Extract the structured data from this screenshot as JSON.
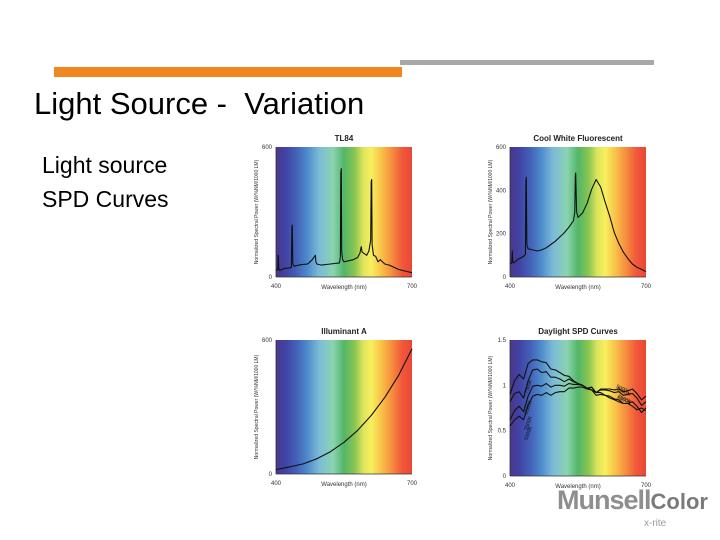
{
  "slide": {
    "title": "Light Source -  Variation",
    "subtitle_line1": "Light source",
    "subtitle_line2": "SPD Curves"
  },
  "logo": {
    "brand": "Munsell",
    "brand_suffix": "Color",
    "maker": "x-rite"
  },
  "colors": {
    "accent_orange": "#f0861e",
    "rule_gray": "#a8a8a8"
  },
  "chart_data": [
    {
      "type": "line",
      "title": "TL84",
      "xlabel": "Wavelength (nm)",
      "ylabel": "Normalized Spectral Power (W/%NM/1000 LM)",
      "xlim": [
        400,
        700
      ],
      "ylim": [
        0,
        600
      ],
      "yticks": [
        "600",
        "0"
      ],
      "xticks": [
        "400",
        "700"
      ],
      "series": [
        {
          "x": [
            400,
            404,
            405,
            406,
            408,
            420,
            430,
            434,
            435,
            436,
            437,
            440,
            450,
            460,
            470,
            480,
            485,
            487,
            488,
            490,
            500,
            520,
            540,
            542,
            543,
            544,
            545,
            547,
            550,
            560,
            570,
            580,
            585,
            588,
            590,
            600,
            605,
            609,
            610,
            611,
            612,
            615,
            620,
            625,
            630,
            640,
            650,
            660,
            670,
            680,
            690,
            700
          ],
          "y": [
            30,
            35,
            100,
            40,
            30,
            40,
            42,
            45,
            230,
            240,
            60,
            50,
            55,
            58,
            60,
            80,
            95,
            100,
            70,
            60,
            55,
            60,
            65,
            95,
            480,
            500,
            120,
            80,
            70,
            75,
            80,
            90,
            110,
            140,
            115,
            100,
            120,
            170,
            440,
            450,
            150,
            100,
            95,
            70,
            80,
            60,
            55,
            45,
            35,
            30,
            25,
            20
          ]
        }
      ]
    },
    {
      "type": "line",
      "title": "Cool White Fluorescent",
      "xlabel": "Wavelength (nm)",
      "ylabel": "Normalized Spectral Power (W/%NM/1000 LM)",
      "xlim": [
        400,
        700
      ],
      "ylim": [
        0,
        600
      ],
      "yticks": [
        "600",
        "400",
        "200",
        "0"
      ],
      "xticks": [
        "400",
        "700"
      ],
      "series": [
        {
          "x": [
            400,
            404,
            405,
            406,
            408,
            420,
            430,
            434,
            435,
            436,
            437,
            440,
            450,
            460,
            470,
            480,
            490,
            500,
            510,
            520,
            530,
            540,
            543,
            544,
            545,
            547,
            550,
            560,
            570,
            580,
            590,
            600,
            610,
            620,
            630,
            640,
            650,
            660,
            670,
            680,
            690,
            700
          ],
          "y": [
            60,
            65,
            120,
            70,
            65,
            85,
            95,
            105,
            440,
            460,
            150,
            130,
            125,
            120,
            125,
            135,
            150,
            165,
            185,
            205,
            230,
            260,
            300,
            460,
            480,
            300,
            275,
            295,
            340,
            405,
            450,
            415,
            345,
            280,
            205,
            155,
            115,
            85,
            60,
            45,
            35,
            25
          ]
        }
      ]
    },
    {
      "type": "line",
      "title": "Illuminant A",
      "xlabel": "Wavelength (nm)",
      "ylabel": "Normalized Spectral Power (W/%NM/1000 LM)",
      "xlim": [
        400,
        700
      ],
      "ylim": [
        0,
        600
      ],
      "yticks": [
        "600",
        "0"
      ],
      "xticks": [
        "400",
        "700"
      ],
      "series": [
        {
          "x": [
            400,
            430,
            460,
            490,
            520,
            550,
            580,
            610,
            640,
            670,
            700
          ],
          "y": [
            20,
            32,
            45,
            68,
            100,
            142,
            195,
            262,
            343,
            440,
            560
          ]
        }
      ]
    },
    {
      "type": "line",
      "title": "Daylight SPD Curves",
      "xlabel": "Wavelength (nm)",
      "ylabel": "Normalized Spectral Power (W/%NM/1000 LM)",
      "xlim": [
        400,
        700
      ],
      "ylim": [
        0,
        1.5
      ],
      "yticks": [
        "1.5",
        "1",
        "0.5",
        "0"
      ],
      "xticks": [
        "400",
        "700"
      ],
      "series": [
        {
          "name": "7500K",
          "x": [
            400,
            410,
            420,
            430,
            440,
            450,
            460,
            470,
            480,
            490,
            500,
            510,
            520,
            530,
            540,
            550,
            560,
            570,
            580,
            590,
            600,
            610,
            620,
            630,
            640,
            650,
            660,
            670,
            680,
            690,
            700
          ],
          "y": [
            0.9,
            1.05,
            1.12,
            1.07,
            1.24,
            1.28,
            1.28,
            1.26,
            1.25,
            1.18,
            1.17,
            1.14,
            1.11,
            1.1,
            1.05,
            1.02,
            1.0,
            0.97,
            0.95,
            0.92,
            0.92,
            0.89,
            0.86,
            0.84,
            0.82,
            0.8,
            0.8,
            0.77,
            0.73,
            0.75,
            0.72
          ]
        },
        {
          "name": "6500K",
          "x": [
            400,
            410,
            420,
            430,
            440,
            450,
            460,
            470,
            480,
            490,
            500,
            510,
            520,
            530,
            540,
            550,
            560,
            570,
            580,
            590,
            600,
            610,
            620,
            630,
            640,
            650,
            660,
            670,
            680,
            690,
            700
          ],
          "y": [
            0.82,
            0.91,
            0.93,
            0.86,
            1.05,
            1.17,
            1.18,
            1.14,
            1.15,
            1.09,
            1.09,
            1.07,
            1.04,
            1.07,
            1.04,
            1.02,
            1.0,
            0.96,
            0.95,
            0.89,
            0.9,
            0.89,
            0.88,
            0.85,
            0.84,
            0.8,
            0.8,
            0.82,
            0.77,
            0.7,
            0.75
          ]
        },
        {
          "name": "5500K",
          "x": [
            400,
            410,
            420,
            430,
            440,
            450,
            460,
            470,
            480,
            490,
            500,
            510,
            520,
            530,
            540,
            550,
            560,
            570,
            580,
            590,
            600,
            610,
            620,
            630,
            640,
            650,
            660,
            670,
            680,
            690,
            700
          ],
          "y": [
            0.62,
            0.72,
            0.77,
            0.71,
            0.88,
            0.99,
            1.0,
            0.99,
            1.02,
            0.98,
            1.0,
            1.0,
            0.99,
            1.02,
            1.01,
            1.01,
            1.0,
            0.97,
            0.98,
            0.92,
            0.95,
            0.95,
            0.94,
            0.92,
            0.93,
            0.89,
            0.9,
            0.91,
            0.86,
            0.78,
            0.82
          ]
        },
        {
          "name": "5000K",
          "x": [
            400,
            410,
            420,
            430,
            440,
            450,
            460,
            470,
            480,
            490,
            500,
            510,
            520,
            530,
            540,
            550,
            560,
            570,
            580,
            590,
            600,
            610,
            620,
            630,
            640,
            650,
            660,
            670,
            680,
            690,
            700
          ],
          "y": [
            0.55,
            0.62,
            0.66,
            0.62,
            0.78,
            0.88,
            0.9,
            0.89,
            0.92,
            0.89,
            0.92,
            0.93,
            0.93,
            0.97,
            0.97,
            0.98,
            0.98,
            0.96,
            0.98,
            0.92,
            0.96,
            0.96,
            0.96,
            0.95,
            0.96,
            0.93,
            0.94,
            0.96,
            0.91,
            0.84,
            0.88
          ]
        }
      ]
    }
  ]
}
